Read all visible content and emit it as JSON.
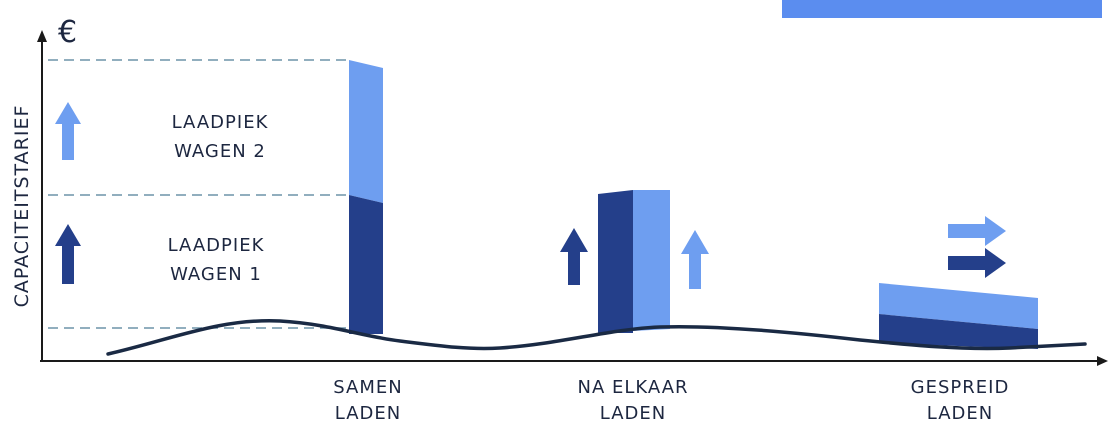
{
  "axis": {
    "y_label": "CAPACITEITSTARIEF",
    "unit_symbol": "€"
  },
  "legend": [
    {
      "line1": "LAADPIEK",
      "line2": "WAGEN 2",
      "color": "#6e9ef0",
      "arrow": "arrow-up-icon"
    },
    {
      "line1": "LAADPIEK",
      "line2": "WAGEN 1",
      "color": "#243f8a",
      "arrow": "arrow-up-icon"
    }
  ],
  "scenarios": [
    {
      "line1": "SAMEN",
      "line2": "LADEN"
    },
    {
      "line1": "NA ELKAAR",
      "line2": "LADEN"
    },
    {
      "line1": "GESPREID",
      "line2": "LADEN"
    }
  ],
  "colors": {
    "wagen1": "#243f8a",
    "wagen2": "#6e9ef0",
    "curve": "#1a2a44",
    "guide": "#6d93a8",
    "banner": "#5b8def",
    "axis": "#1a1a1a"
  },
  "icons": [
    "arrow-up-icon",
    "arrow-right-icon"
  ]
}
